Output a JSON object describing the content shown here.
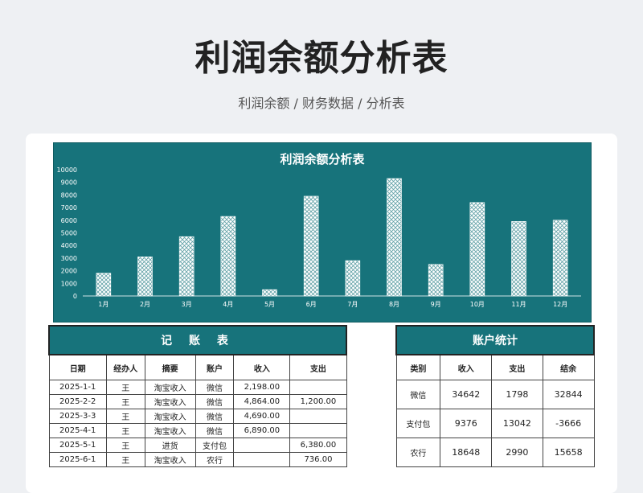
{
  "page": {
    "title": "利润余额分析表",
    "subtitle": "利润余额 / 财务数据 / 分析表"
  },
  "chart_data": {
    "type": "bar",
    "title": "利润余额分析表",
    "categories": [
      "1月",
      "2月",
      "3月",
      "4月",
      "5月",
      "6月",
      "7月",
      "8月",
      "9月",
      "10月",
      "11月",
      "12月"
    ],
    "values": [
      1800,
      3100,
      4700,
      6300,
      500,
      7900,
      2800,
      9300,
      2500,
      7400,
      5900,
      6000
    ],
    "ylim": [
      0,
      10000
    ],
    "yticks": [
      0,
      1000,
      2000,
      3000,
      4000,
      5000,
      6000,
      7000,
      8000,
      9000,
      10000
    ],
    "grid": false,
    "colors": {
      "background": "#17737b",
      "bar": "#ffffff",
      "text": "#ffffff"
    }
  },
  "ledger": {
    "caption": "记 账 表",
    "headers": [
      "日期",
      "经办人",
      "摘要",
      "账户",
      "收入",
      "支出"
    ],
    "rows": [
      [
        "2025-1-1",
        "王",
        "淘宝收入",
        "微信",
        "2,198.00",
        ""
      ],
      [
        "2025-2-2",
        "王",
        "淘宝收入",
        "微信",
        "4,864.00",
        "1,200.00"
      ],
      [
        "2025-3-3",
        "王",
        "淘宝收入",
        "微信",
        "4,690.00",
        ""
      ],
      [
        "2025-4-1",
        "王",
        "淘宝收入",
        "微信",
        "6,890.00",
        ""
      ],
      [
        "2025-5-1",
        "王",
        "进货",
        "支付包",
        "",
        "6,380.00"
      ],
      [
        "2025-6-1",
        "王",
        "淘宝收入",
        "农行",
        "",
        "736.00"
      ]
    ]
  },
  "accounts": {
    "caption": "账户统计",
    "headers": [
      "类别",
      "收入",
      "支出",
      "结余"
    ],
    "rows": [
      [
        "微信",
        "34642",
        "1798",
        "32844"
      ],
      [
        "支付包",
        "9376",
        "13042",
        "-3666"
      ],
      [
        "农行",
        "18648",
        "2990",
        "15658"
      ]
    ]
  }
}
